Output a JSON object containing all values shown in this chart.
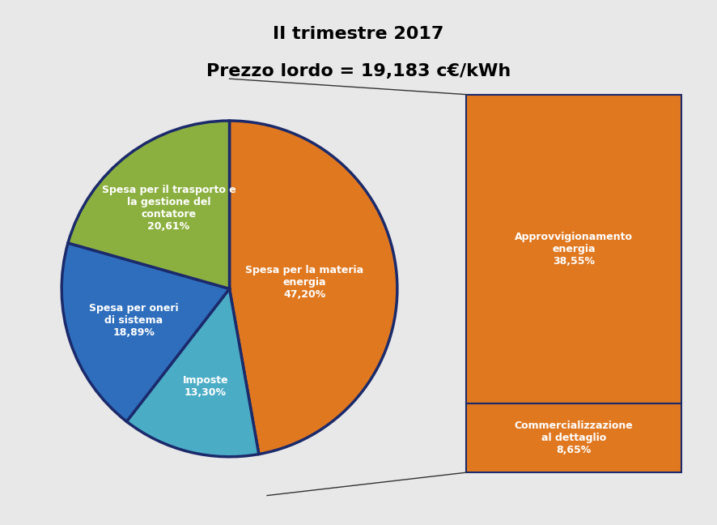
{
  "title_line1": "II trimestre 2017",
  "title_line2": "Prezzo lordo = 19,183 c€/kWh",
  "background_color": "#e8e8e8",
  "pie_slices": [
    {
      "label": "Spesa per la materia\nenergia\n47,20%",
      "value": 47.2,
      "color": "#E07820",
      "text_color": "#ffffff"
    },
    {
      "label": "Imposte\n13,30%",
      "value": 13.3,
      "color": "#4BACC6",
      "text_color": "#ffffff"
    },
    {
      "label": "Spesa per oneri\ndi sistema\n18,89%",
      "value": 18.89,
      "color": "#2E6EBD",
      "text_color": "#ffffff"
    },
    {
      "label": "Spesa per il trasporto e\nla gestione del\ncontatore\n20,61%",
      "value": 20.61,
      "color": "#8CB040",
      "text_color": "#ffffff"
    }
  ],
  "pie_edge_color": "#1B2A6B",
  "pie_edge_width": 2.5,
  "bar_items": [
    {
      "label": "Approvvigionamento\nenergia\n38,55%",
      "value": 38.55,
      "color": "#E07820",
      "text_color": "#ffffff"
    },
    {
      "label": "Commercializzazione\nal dettaglio\n8,65%",
      "value": 8.65,
      "color": "#E07820",
      "text_color": "#ffffff"
    }
  ],
  "bar_edge_color": "#1B2A6B",
  "bar_edge_width": 1.5
}
